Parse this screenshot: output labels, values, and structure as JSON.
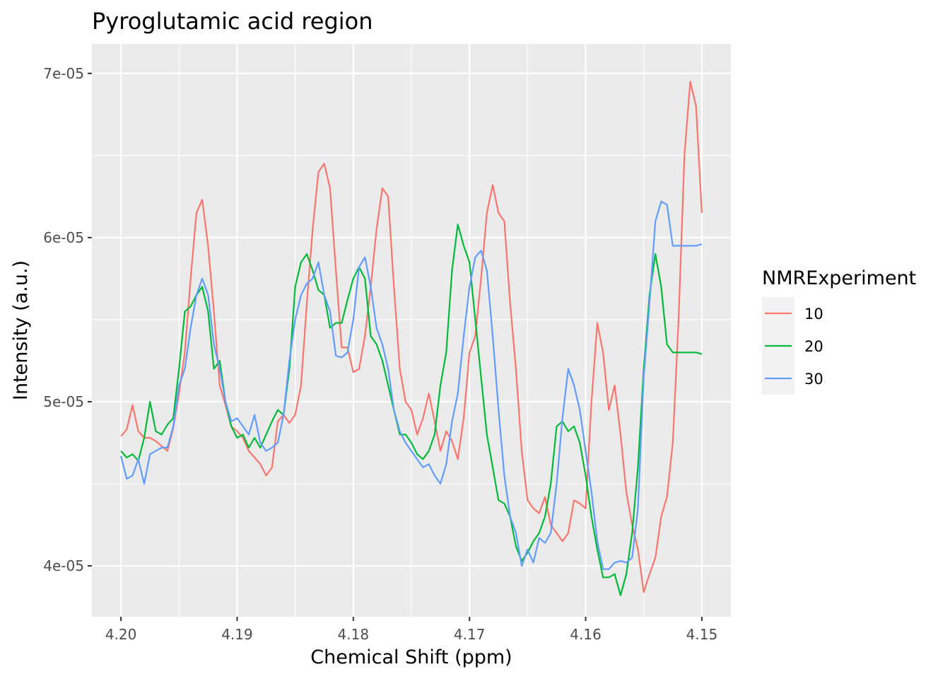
{
  "chart_data": {
    "type": "line",
    "title": "Pyroglutamic acid region",
    "xlabel": "Chemical Shift (ppm)",
    "ylabel": "Intensity (a.u.)",
    "x_reversed": true,
    "xlim": [
      4.1475,
      4.2025
    ],
    "ylim": [
      3.69e-05,
      7.18e-05
    ],
    "x_ticks": [
      4.2,
      4.19,
      4.18,
      4.17,
      4.16,
      4.15
    ],
    "x_tick_labels": [
      "4.20",
      "4.19",
      "4.18",
      "4.17",
      "4.16",
      "4.15"
    ],
    "y_ticks": [
      4e-05,
      5e-05,
      6e-05,
      7e-05
    ],
    "y_tick_labels": [
      "4e-05",
      "5e-05",
      "6e-05",
      "7e-05"
    ],
    "grid": true,
    "legend": {
      "title": "NMRExperiment",
      "position": "right"
    },
    "series": [
      {
        "name": "10",
        "color": "#F8766D",
        "x": [
          4.2,
          4.1995,
          4.199,
          4.1985,
          4.198,
          4.1975,
          4.197,
          4.1965,
          4.196,
          4.1955,
          4.195,
          4.1945,
          4.194,
          4.1935,
          4.193,
          4.1925,
          4.192,
          4.1915,
          4.191,
          4.1905,
          4.19,
          4.1895,
          4.189,
          4.1885,
          4.188,
          4.1875,
          4.187,
          4.1865,
          4.186,
          4.1855,
          4.185,
          4.1845,
          4.184,
          4.1835,
          4.183,
          4.1825,
          4.182,
          4.1815,
          4.181,
          4.1805,
          4.18,
          4.1795,
          4.179,
          4.1785,
          4.178,
          4.1775,
          4.177,
          4.1765,
          4.176,
          4.1755,
          4.175,
          4.1745,
          4.174,
          4.1735,
          4.173,
          4.1725,
          4.172,
          4.1715,
          4.171,
          4.1705,
          4.17,
          4.1695,
          4.169,
          4.1685,
          4.168,
          4.1675,
          4.167,
          4.1665,
          4.166,
          4.1655,
          4.165,
          4.1645,
          4.164,
          4.1635,
          4.163,
          4.1625,
          4.162,
          4.1615,
          4.161,
          4.1605,
          4.16,
          4.1595,
          4.159,
          4.1585,
          4.158,
          4.1575,
          4.157,
          4.1565,
          4.156,
          4.1555,
          4.155,
          4.1545,
          4.154,
          4.1535,
          4.153,
          4.1525,
          4.152,
          4.1515,
          4.151,
          4.1505,
          4.15
        ],
        "y": [
          4.79e-05,
          4.83e-05,
          4.98e-05,
          4.82e-05,
          4.78e-05,
          4.78e-05,
          4.76e-05,
          4.73e-05,
          4.7e-05,
          4.84e-05,
          5.05e-05,
          5.3e-05,
          5.75e-05,
          6.15e-05,
          6.23e-05,
          5.95e-05,
          5.55e-05,
          5.1e-05,
          4.98e-05,
          4.85e-05,
          4.82e-05,
          4.78e-05,
          4.7e-05,
          4.66e-05,
          4.62e-05,
          4.55e-05,
          4.6e-05,
          4.88e-05,
          4.92e-05,
          4.87e-05,
          4.92e-05,
          5.1e-05,
          5.6e-05,
          6.05e-05,
          6.4e-05,
          6.45e-05,
          6.3e-05,
          5.8e-05,
          5.33e-05,
          5.33e-05,
          5.18e-05,
          5.2e-05,
          5.4e-05,
          5.7e-05,
          6.05e-05,
          6.3e-05,
          6.25e-05,
          5.7e-05,
          5.2e-05,
          5e-05,
          4.95e-05,
          4.8e-05,
          4.9e-05,
          5.05e-05,
          4.88e-05,
          4.7e-05,
          4.82e-05,
          4.76e-05,
          4.65e-05,
          4.9e-05,
          5.3e-05,
          5.4e-05,
          5.75e-05,
          6.15e-05,
          6.32e-05,
          6.15e-05,
          6.1e-05,
          5.6e-05,
          5.2e-05,
          4.7e-05,
          4.4e-05,
          4.35e-05,
          4.32e-05,
          4.42e-05,
          4.25e-05,
          4.2e-05,
          4.15e-05,
          4.2e-05,
          4.4e-05,
          4.38e-05,
          4.35e-05,
          5e-05,
          5.48e-05,
          5.3e-05,
          4.95e-05,
          5.1e-05,
          4.8e-05,
          4.45e-05,
          4.25e-05,
          4.1e-05,
          3.84e-05,
          3.95e-05,
          4.05e-05,
          4.3e-05,
          4.42e-05,
          4.75e-05,
          5.5e-05,
          6.5e-05,
          6.95e-05,
          6.8e-05,
          6.15e-05
        ]
      },
      {
        "name": "20",
        "color": "#00BA38",
        "x": [
          4.2,
          4.1995,
          4.199,
          4.1985,
          4.198,
          4.1975,
          4.197,
          4.1965,
          4.196,
          4.1955,
          4.195,
          4.1945,
          4.194,
          4.1935,
          4.193,
          4.1925,
          4.192,
          4.1915,
          4.191,
          4.1905,
          4.19,
          4.1895,
          4.189,
          4.1885,
          4.188,
          4.1875,
          4.187,
          4.1865,
          4.186,
          4.1855,
          4.185,
          4.1845,
          4.184,
          4.1835,
          4.183,
          4.1825,
          4.182,
          4.1815,
          4.181,
          4.1805,
          4.18,
          4.1795,
          4.179,
          4.1785,
          4.178,
          4.1775,
          4.177,
          4.1765,
          4.176,
          4.1755,
          4.175,
          4.1745,
          4.174,
          4.1735,
          4.173,
          4.1725,
          4.172,
          4.1715,
          4.171,
          4.1705,
          4.17,
          4.1695,
          4.169,
          4.1685,
          4.168,
          4.1675,
          4.167,
          4.1665,
          4.166,
          4.1655,
          4.165,
          4.1645,
          4.164,
          4.1635,
          4.163,
          4.1625,
          4.162,
          4.1615,
          4.161,
          4.1605,
          4.16,
          4.1595,
          4.159,
          4.1585,
          4.158,
          4.1575,
          4.157,
          4.1565,
          4.156,
          4.1555,
          4.155,
          4.1545,
          4.154,
          4.1535,
          4.153,
          4.1525,
          4.152,
          4.1515,
          4.151,
          4.1505,
          4.15
        ],
        "y": [
          4.7e-05,
          4.66e-05,
          4.68e-05,
          4.64e-05,
          4.78e-05,
          5e-05,
          4.82e-05,
          4.8e-05,
          4.86e-05,
          4.9e-05,
          5.2e-05,
          5.55e-05,
          5.58e-05,
          5.65e-05,
          5.7e-05,
          5.55e-05,
          5.2e-05,
          5.25e-05,
          5e-05,
          4.85e-05,
          4.78e-05,
          4.8e-05,
          4.72e-05,
          4.78e-05,
          4.72e-05,
          4.8e-05,
          4.88e-05,
          4.95e-05,
          4.92e-05,
          5.2e-05,
          5.7e-05,
          5.85e-05,
          5.9e-05,
          5.8e-05,
          5.68e-05,
          5.65e-05,
          5.45e-05,
          5.48e-05,
          5.48e-05,
          5.62e-05,
          5.75e-05,
          5.82e-05,
          5.75e-05,
          5.4e-05,
          5.35e-05,
          5.25e-05,
          5.1e-05,
          4.95e-05,
          4.8e-05,
          4.8e-05,
          4.75e-05,
          4.68e-05,
          4.65e-05,
          4.7e-05,
          4.8e-05,
          5.1e-05,
          5.3e-05,
          5.8e-05,
          6.08e-05,
          5.95e-05,
          5.85e-05,
          5.5e-05,
          5.15e-05,
          4.8e-05,
          4.6e-05,
          4.4e-05,
          4.38e-05,
          4.3e-05,
          4.12e-05,
          4.03e-05,
          4.08e-05,
          4.15e-05,
          4.2e-05,
          4.3e-05,
          4.5e-05,
          4.85e-05,
          4.88e-05,
          4.82e-05,
          4.85e-05,
          4.75e-05,
          4.55e-05,
          4.3e-05,
          4.1e-05,
          3.93e-05,
          3.93e-05,
          3.95e-05,
          3.82e-05,
          3.95e-05,
          4.2e-05,
          4.6e-05,
          5.2e-05,
          5.65e-05,
          5.9e-05,
          5.7e-05,
          5.35e-05,
          5.3e-05,
          5.3e-05,
          5.3e-05,
          5.3e-05,
          5.3e-05,
          5.29e-05
        ]
      },
      {
        "name": "30",
        "color": "#619CFF",
        "x": [
          4.2,
          4.1995,
          4.199,
          4.1985,
          4.198,
          4.1975,
          4.197,
          4.1965,
          4.196,
          4.1955,
          4.195,
          4.1945,
          4.194,
          4.1935,
          4.193,
          4.1925,
          4.192,
          4.1915,
          4.191,
          4.1905,
          4.19,
          4.1895,
          4.189,
          4.1885,
          4.188,
          4.1875,
          4.187,
          4.1865,
          4.186,
          4.1855,
          4.185,
          4.1845,
          4.184,
          4.1835,
          4.183,
          4.1825,
          4.182,
          4.1815,
          4.181,
          4.1805,
          4.18,
          4.1795,
          4.179,
          4.1785,
          4.178,
          4.1775,
          4.177,
          4.1765,
          4.176,
          4.1755,
          4.175,
          4.1745,
          4.174,
          4.1735,
          4.173,
          4.1725,
          4.172,
          4.1715,
          4.171,
          4.1705,
          4.17,
          4.1695,
          4.169,
          4.1685,
          4.168,
          4.1675,
          4.167,
          4.1665,
          4.166,
          4.1655,
          4.165,
          4.1645,
          4.164,
          4.1635,
          4.163,
          4.1625,
          4.162,
          4.1615,
          4.161,
          4.1605,
          4.16,
          4.1595,
          4.159,
          4.1585,
          4.158,
          4.1575,
          4.157,
          4.1565,
          4.156,
          4.1555,
          4.155,
          4.1545,
          4.154,
          4.1535,
          4.153,
          4.1525,
          4.152,
          4.1515,
          4.151,
          4.1505,
          4.15
        ],
        "y": [
          4.67e-05,
          4.53e-05,
          4.55e-05,
          4.65e-05,
          4.5e-05,
          4.68e-05,
          4.7e-05,
          4.72e-05,
          4.72e-05,
          4.85e-05,
          5.1e-05,
          5.2e-05,
          5.45e-05,
          5.65e-05,
          5.75e-05,
          5.65e-05,
          5.35e-05,
          5.2e-05,
          5e-05,
          4.88e-05,
          4.9e-05,
          4.85e-05,
          4.8e-05,
          4.92e-05,
          4.75e-05,
          4.7e-05,
          4.72e-05,
          4.75e-05,
          4.92e-05,
          5.25e-05,
          5.5e-05,
          5.65e-05,
          5.72e-05,
          5.75e-05,
          5.85e-05,
          5.65e-05,
          5.55e-05,
          5.28e-05,
          5.27e-05,
          5.3e-05,
          5.5e-05,
          5.82e-05,
          5.88e-05,
          5.7e-05,
          5.45e-05,
          5.35e-05,
          5.2e-05,
          4.95e-05,
          4.82e-05,
          4.75e-05,
          4.7e-05,
          4.65e-05,
          4.6e-05,
          4.62e-05,
          4.55e-05,
          4.5e-05,
          4.62e-05,
          4.88e-05,
          5.05e-05,
          5.4e-05,
          5.7e-05,
          5.88e-05,
          5.92e-05,
          5.8e-05,
          5.4e-05,
          4.95e-05,
          4.55e-05,
          4.3e-05,
          4.2e-05,
          4e-05,
          4.1e-05,
          4.02e-05,
          4.17e-05,
          4.14e-05,
          4.2e-05,
          4.5e-05,
          4.9e-05,
          5.2e-05,
          5.1e-05,
          4.95e-05,
          4.7e-05,
          4.45e-05,
          4.15e-05,
          3.98e-05,
          3.98e-05,
          4.02e-05,
          4.03e-05,
          4.02e-05,
          4.05e-05,
          4.35e-05,
          5.15e-05,
          5.6e-05,
          6.1e-05,
          6.22e-05,
          6.2e-05,
          5.95e-05,
          5.95e-05,
          5.95e-05,
          5.95e-05,
          5.95e-05,
          5.96e-05
        ]
      }
    ]
  }
}
